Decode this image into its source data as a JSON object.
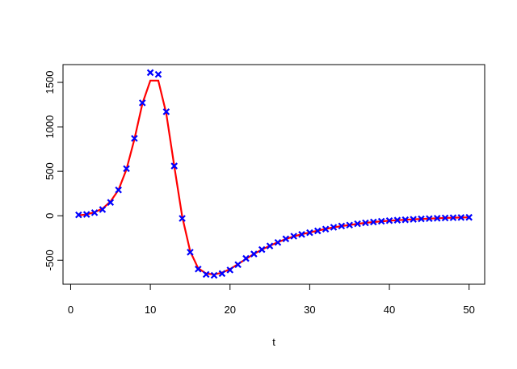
{
  "chart_data": {
    "type": "line",
    "xlabel": "t",
    "x": [
      1,
      2,
      3,
      4,
      5,
      6,
      7,
      8,
      9,
      10,
      11,
      12,
      13,
      14,
      15,
      16,
      17,
      18,
      19,
      20,
      21,
      22,
      23,
      24,
      25,
      26,
      27,
      28,
      29,
      30,
      31,
      32,
      33,
      34,
      35,
      36,
      37,
      38,
      39,
      40,
      41,
      42,
      43,
      44,
      45,
      46,
      47,
      48,
      49,
      50
    ],
    "series": [
      {
        "type": "scatter",
        "marker": "x",
        "color": "#0000ff",
        "values": [
          10,
          15,
          35,
          70,
          150,
          290,
          530,
          870,
          1270,
          1610,
          1590,
          1170,
          560,
          -30,
          -410,
          -600,
          -660,
          -670,
          -650,
          -610,
          -550,
          -480,
          -430,
          -380,
          -340,
          -300,
          -260,
          -230,
          -210,
          -190,
          -170,
          -150,
          -130,
          -115,
          -105,
          -90,
          -80,
          -70,
          -62,
          -55,
          -50,
          -45,
          -40,
          -35,
          -32,
          -28,
          -25,
          -22,
          -20,
          -18
        ]
      },
      {
        "type": "line",
        "color": "#ff0000",
        "values": [
          5,
          15,
          40,
          80,
          160,
          290,
          520,
          860,
          1260,
          1520,
          1520,
          1150,
          560,
          -10,
          -400,
          -590,
          -650,
          -660,
          -640,
          -600,
          -545,
          -485,
          -430,
          -380,
          -338,
          -298,
          -262,
          -232,
          -208,
          -188,
          -168,
          -148,
          -130,
          -116,
          -104,
          -91,
          -80,
          -71,
          -63,
          -56,
          -50,
          -45,
          -40,
          -36,
          -32,
          -28,
          -25,
          -22,
          -20,
          -18
        ]
      }
    ],
    "xlim": [
      -0.96,
      51.96
    ],
    "ylim": [
      -770,
      1700
    ],
    "xticks": [
      0,
      10,
      20,
      30,
      40,
      50
    ],
    "yticks": [
      -500,
      0,
      500,
      1000,
      1500
    ],
    "box": true
  }
}
